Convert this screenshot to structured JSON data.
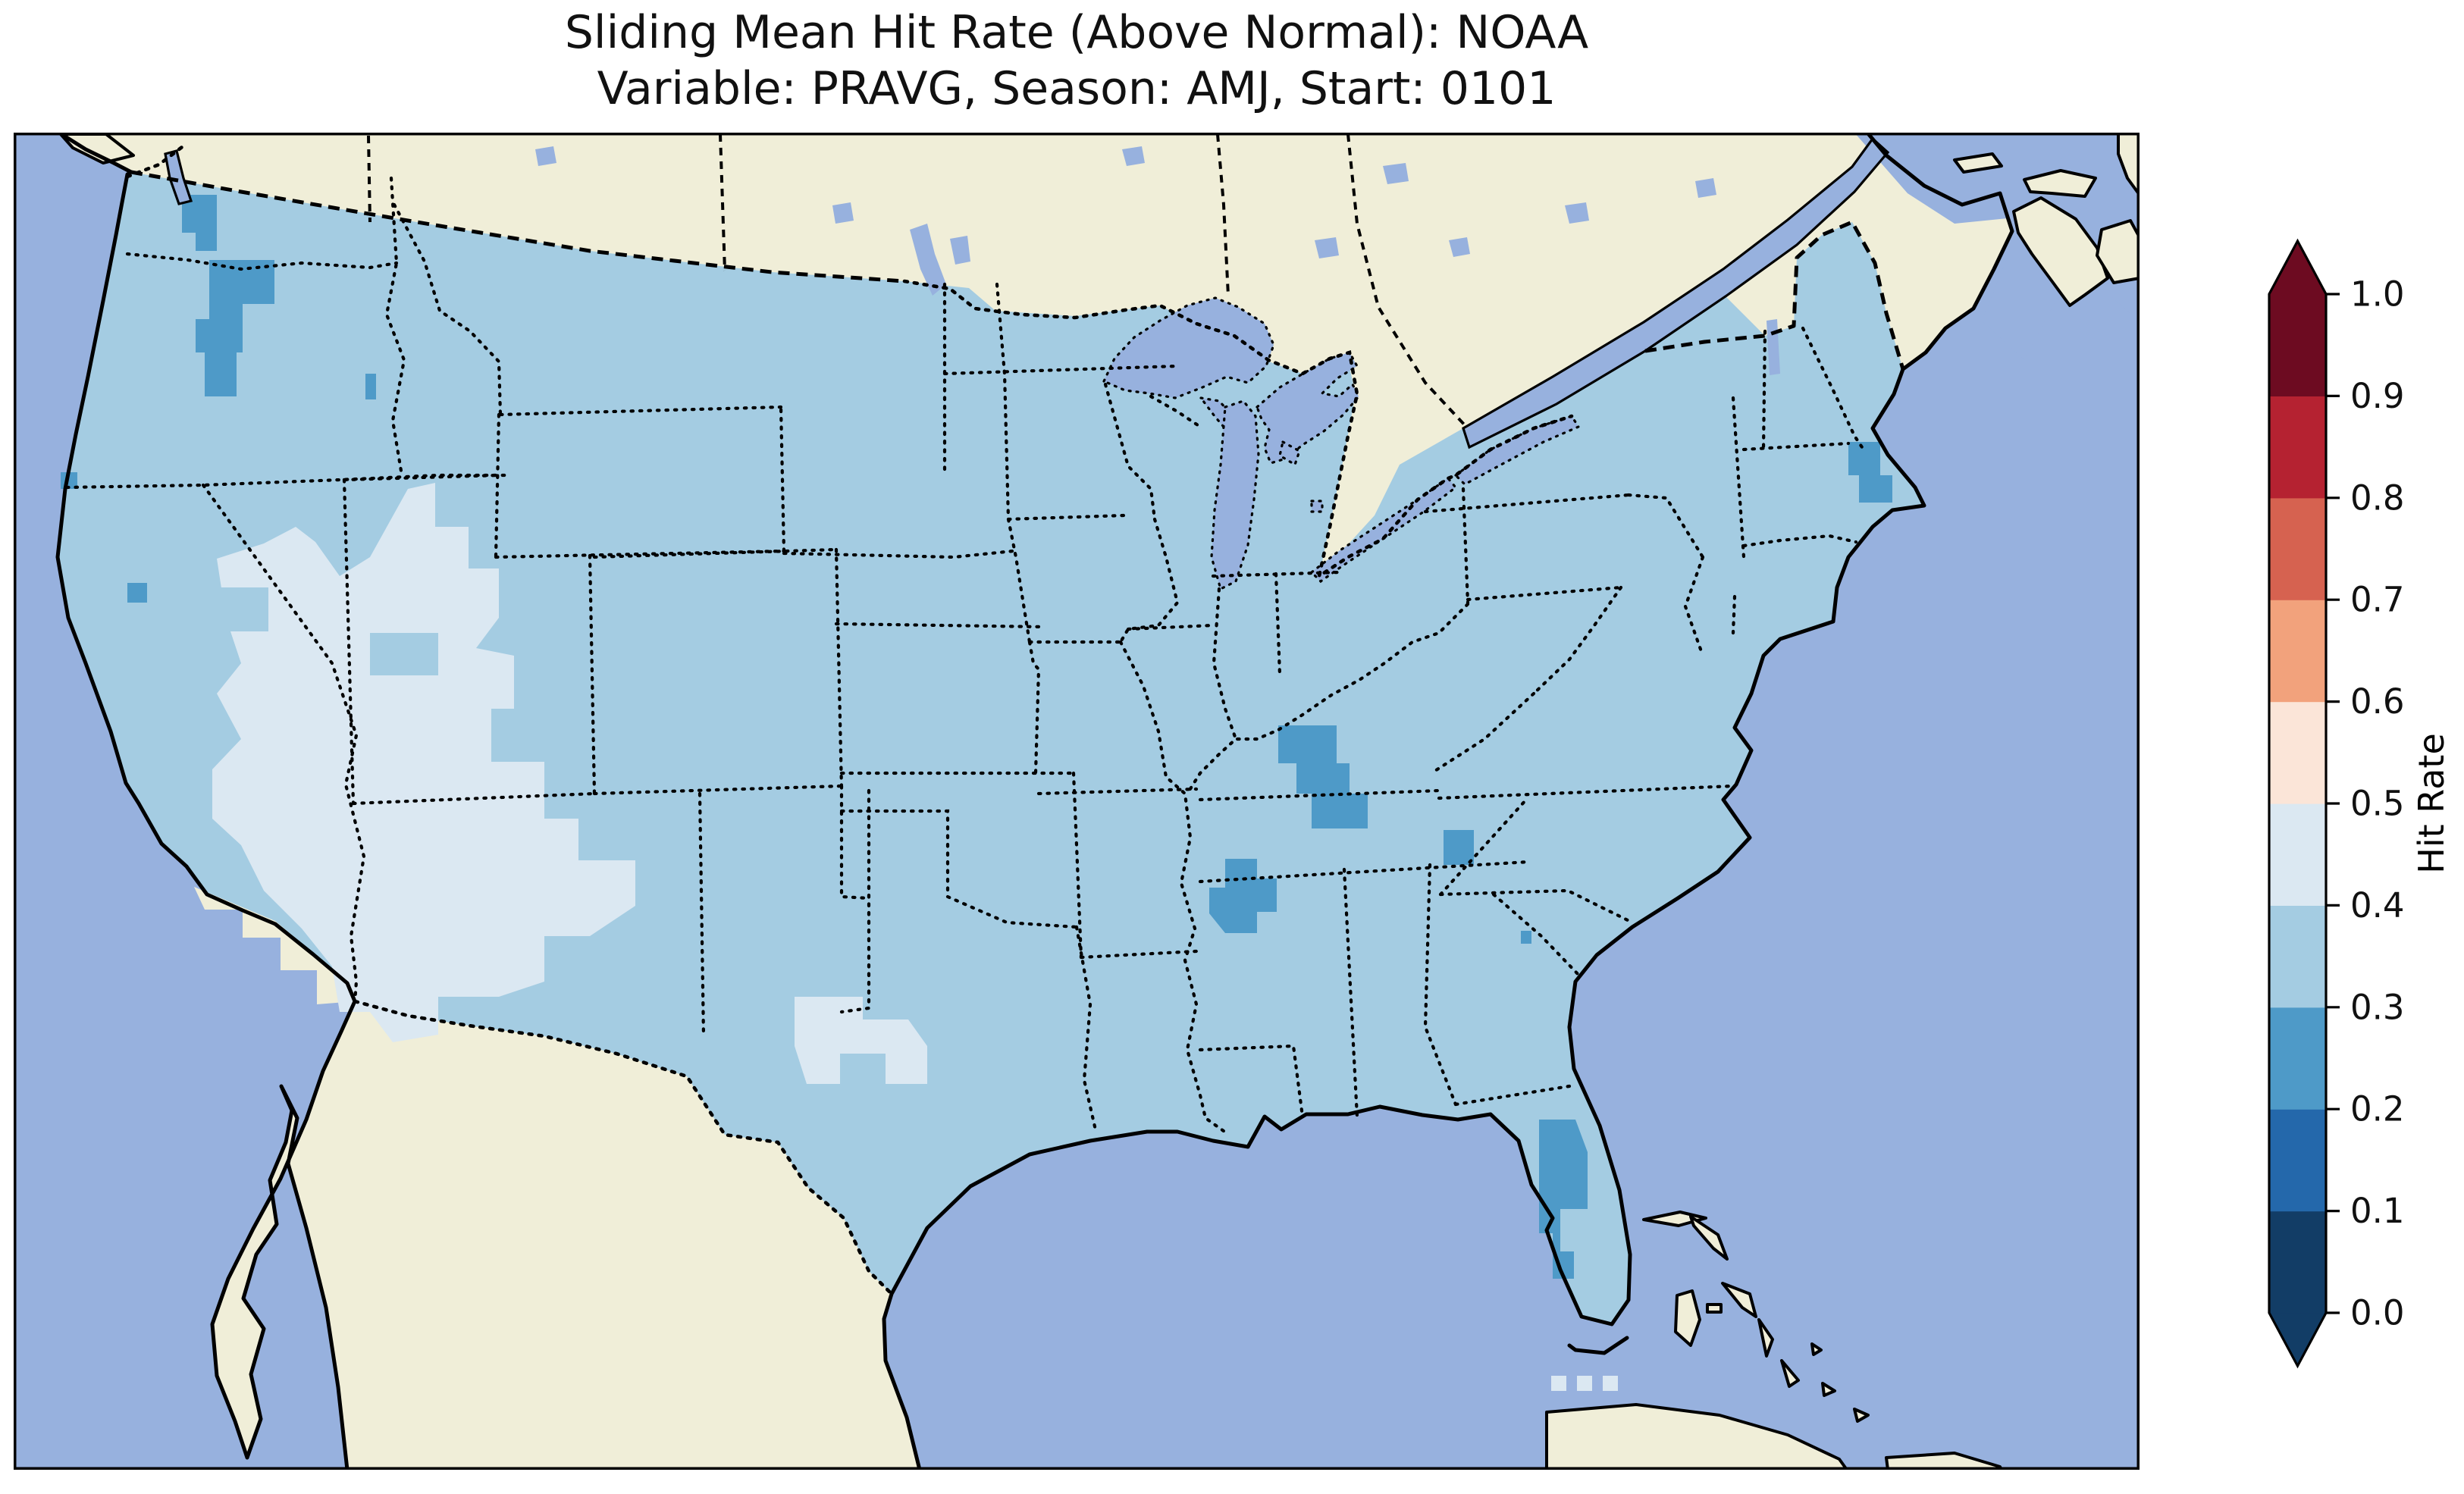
{
  "figure": {
    "title_line1": "Sliding Mean Hit Rate (Above Normal): NOAA",
    "title_line2": "Variable: PRAVG, Season: AMJ, Start: 0101"
  },
  "colors": {
    "ocean": "#97b1de",
    "land": "#f0eed8",
    "us_main": "#a4cce2",
    "bin_04_05": "#dbe8f2",
    "bin_02_03": "#4e9ac8",
    "frame": "#000000",
    "background": "#ffffff"
  },
  "chart_data": {
    "type": "heatmap",
    "title": "Sliding Mean Hit Rate (Above Normal): NOAA",
    "subtitle": "Variable: PRAVG, Season: AMJ, Start: 0101",
    "geography": "Contiguous United States gridded hit-rate map with surrounding Canada, Mexico and Caribbean shown as no-data land",
    "colorbar": {
      "label": "Hit Rate",
      "range": [
        0.0,
        1.0
      ],
      "extend": "both",
      "ticks": [
        "0.0",
        "0.1",
        "0.2",
        "0.3",
        "0.4",
        "0.5",
        "0.6",
        "0.7",
        "0.8",
        "0.9",
        "1.0"
      ],
      "bins": [
        {
          "range": [
            0.0,
            0.1
          ],
          "color": "#123d66"
        },
        {
          "range": [
            0.1,
            0.2
          ],
          "color": "#2468ab"
        },
        {
          "range": [
            0.2,
            0.3
          ],
          "color": "#4e9ac8"
        },
        {
          "range": [
            0.3,
            0.4
          ],
          "color": "#a4cce2"
        },
        {
          "range": [
            0.4,
            0.5
          ],
          "color": "#dbe8f2"
        },
        {
          "range": [
            0.5,
            0.6
          ],
          "color": "#fbe5d8"
        },
        {
          "range": [
            0.6,
            0.7
          ],
          "color": "#f2a27c"
        },
        {
          "range": [
            0.7,
            0.8
          ],
          "color": "#d66250"
        },
        {
          "range": [
            0.8,
            0.9
          ],
          "color": "#b52231"
        },
        {
          "range": [
            0.9,
            1.0
          ],
          "color": "#6d0b21"
        }
      ]
    },
    "regions": [
      {
        "name": "Most of the contiguous US",
        "hit_rate_bin": "0.3-0.4"
      },
      {
        "name": "Great Basin / Intermountain West (NV, UT, W CO, N AZ, NM, SE OR, SW WY)",
        "hit_rate_bin": "0.4-0.5"
      },
      {
        "name": "Central Texas",
        "hit_rate_bin": "0.4-0.5"
      },
      {
        "name": "North-central and southern Washington / N Oregon",
        "hit_rate_bin": "0.2-0.3"
      },
      {
        "name": "Southern Illinois - western Kentucky",
        "hit_rate_bin": "0.2-0.3"
      },
      {
        "name": "NE Arkansas / SE Missouri",
        "hit_rate_bin": "0.2-0.3"
      },
      {
        "name": "Tennessee / North Carolina border",
        "hit_rate_bin": "0.2-0.3"
      },
      {
        "name": "Small spot in South Carolina",
        "hit_rate_bin": "0.2-0.3"
      },
      {
        "name": "West Florida Gulf coast",
        "hit_rate_bin": "0.2-0.3"
      },
      {
        "name": "Eastern Massachusetts (Boston / Cape Cod)",
        "hit_rate_bin": "0.2-0.3"
      },
      {
        "name": "Southern California coast (LA/San Diego), no data",
        "hit_rate_bin": "none"
      }
    ]
  }
}
